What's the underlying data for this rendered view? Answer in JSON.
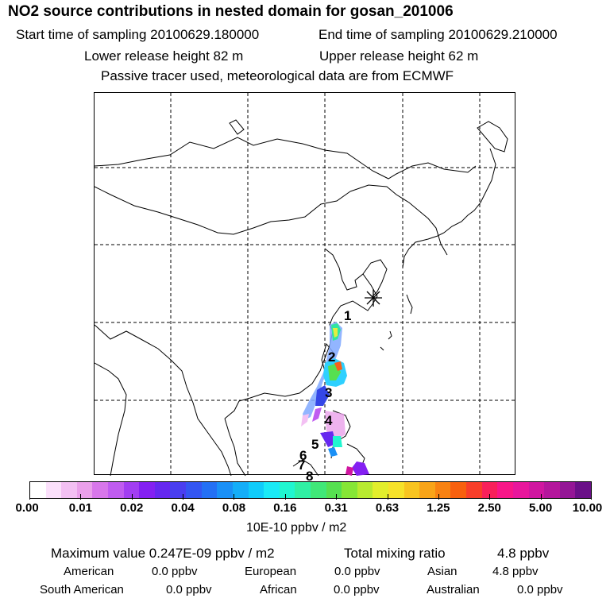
{
  "header": {
    "title": "NO2 source contributions in nested domain for gosan_201006",
    "start_time": "Start time of sampling 20100629.180000",
    "end_time": "End time of sampling 20100629.210000",
    "lower_release": "Lower release height   82 m",
    "upper_release": "Upper release height   62 m",
    "tracer_note": "Passive tracer used, meteorological data are from ECMWF"
  },
  "map": {
    "markers": [
      "1",
      "2",
      "3",
      "4",
      "5",
      "6",
      "7",
      "8"
    ],
    "receptor_symbol": "gosan-receptor"
  },
  "colorbar": {
    "ticks": [
      "0.00",
      "0.01",
      "0.02",
      "0.04",
      "0.08",
      "0.16",
      "0.31",
      "0.63",
      "1.25",
      "2.50",
      "5.00",
      "10.00"
    ],
    "colors": [
      "#ffffff",
      "#fbe0fb",
      "#f3c0f3",
      "#eaa0ea",
      "#d877ea",
      "#c05cf0",
      "#a23ef2",
      "#8420f2",
      "#6628f0",
      "#4a3ef0",
      "#3456f2",
      "#2470f4",
      "#1a90f6",
      "#14aef8",
      "#10ccfa",
      "#1aeaf6",
      "#20f6d0",
      "#30f0a4",
      "#40e878",
      "#56e050",
      "#86e636",
      "#b8ea30",
      "#e2ee2c",
      "#f6e22a",
      "#f8c420",
      "#f8a418",
      "#f88212",
      "#f8600e",
      "#f83e2a",
      "#f8205a",
      "#f81688",
      "#e8169c",
      "#d016a0",
      "#b4169c",
      "#941696",
      "#6a1088"
    ],
    "unit_label": "10E-10 ppbv / m2"
  },
  "summary": {
    "maximum_label": "Maximum value  0.247E-09 ppbv / m2",
    "total_label": "Total mixing ratio",
    "total_value": "4.8 ppbv",
    "regions": [
      {
        "name": "American",
        "value": "0.0 ppbv"
      },
      {
        "name": "European",
        "value": "0.0 ppbv"
      },
      {
        "name": "Asian",
        "value": "4.8 ppbv"
      },
      {
        "name": "South American",
        "value": "0.0 ppbv"
      },
      {
        "name": "African",
        "value": "0.0 ppbv"
      },
      {
        "name": "Australian",
        "value": "0.0 ppbv"
      }
    ]
  }
}
